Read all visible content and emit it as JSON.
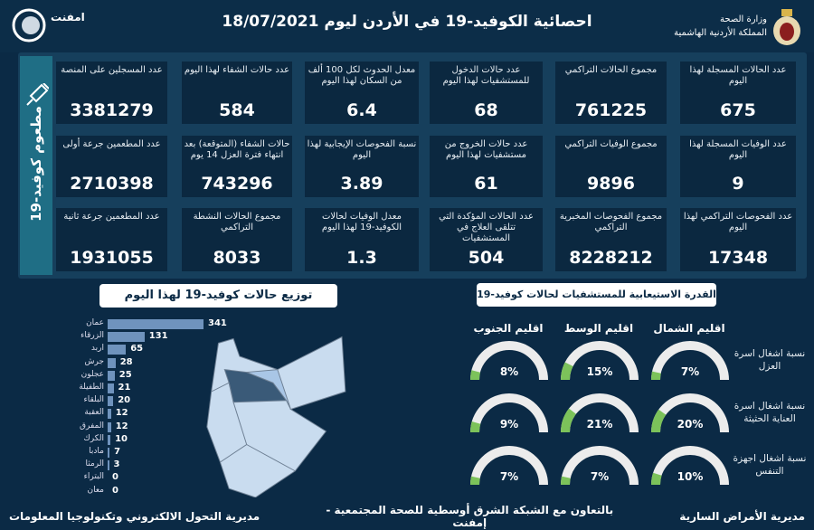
{
  "header": {
    "title": "احصائية الكوفيد-19 في الأردن ليوم 18/07/2021",
    "ministry": "وزارة الصحة",
    "kingdom": "المملكة الأردنية الهاشمية",
    "partner_logo": "امفنت"
  },
  "vaccine_label": "مطعوم كوفيد-19",
  "cards": [
    [
      {
        "label": "عدد المسجلين على المنصة",
        "value": "3381279"
      },
      {
        "label": "عدد حالات الشفاء لهذا اليوم",
        "value": "584"
      },
      {
        "label": "معدل الحدوث لكل 100 ألف من السكان لهذا اليوم",
        "value": "6.4"
      },
      {
        "label": "عدد حالات الدخول للمستشفيات لهذا اليوم",
        "value": "68"
      },
      {
        "label": "مجموع الحالات التراكمي",
        "value": "761225"
      },
      {
        "label": "عدد الحالات المسجلة لهذا اليوم",
        "value": "675"
      }
    ],
    [
      {
        "label": "عدد المطعمين جرعة أولى",
        "value": "2710398"
      },
      {
        "label": "حالات الشفاء (المتوقعة) بعد انتهاء فترة العزل 14 يوم",
        "value": "743296"
      },
      {
        "label": "نسبة الفحوصات الإيجابية لهذا اليوم",
        "value": "3.89"
      },
      {
        "label": "عدد حالات الخروج من مستشفيات لهذا اليوم",
        "value": "61"
      },
      {
        "label": "مجموع الوفيات التراكمي",
        "value": "9896"
      },
      {
        "label": "عدد الوفيات المسجلة لهذا اليوم",
        "value": "9"
      }
    ],
    [
      {
        "label": "عدد المطعمين جرعة ثانية",
        "value": "1931055"
      },
      {
        "label": "مجموع الحالات النشطة التراكمي",
        "value": "8033"
      },
      {
        "label": "معدل الوفيات لحالات الكوفيد-19 لهذا اليوم",
        "value": "1.3"
      },
      {
        "label": "عدد الحالات المؤكدة التي تتلقى العلاج في المستشفيات",
        "value": "504"
      },
      {
        "label": "مجموع الفحوصات المخبرية التراكمي",
        "value": "8228212"
      },
      {
        "label": "عدد الفحوصات التراكمي لهذا اليوم",
        "value": "17348"
      }
    ]
  ],
  "distribution": {
    "title": "توزيع حالات كوفيد-19 لهذا اليوم",
    "bar_color": "#6f93bd",
    "items": [
      {
        "name": "عمان",
        "value": 341
      },
      {
        "name": "الزرقاء",
        "value": 131
      },
      {
        "name": "اربد",
        "value": 65
      },
      {
        "name": "جرش",
        "value": 28
      },
      {
        "name": "عجلون",
        "value": 25
      },
      {
        "name": "الطفيلة",
        "value": 21
      },
      {
        "name": "البلقاء",
        "value": 20
      },
      {
        "name": "العقبة",
        "value": 12
      },
      {
        "name": "المفرق",
        "value": 12
      },
      {
        "name": "الكرك",
        "value": 10
      },
      {
        "name": "مادبا",
        "value": 7
      },
      {
        "name": "الرمثا",
        "value": 3
      },
      {
        "name": "البتراء",
        "value": 0
      },
      {
        "name": "معان",
        "value": 0
      }
    ]
  },
  "capacity": {
    "title": "القدرة الاستيعابية للمستشفيات لحالات كوفيد-19",
    "fill_color": "#7cc25a",
    "track_color": "#ececec",
    "regions": [
      "اقليم الجنوب",
      "اقليم الوسط",
      "اقليم الشمال"
    ],
    "rows": [
      {
        "label": "نسبة اشغال اسرة العزل",
        "values": [
          8,
          15,
          7
        ]
      },
      {
        "label": "نسبة اشغال اسرة العناية الحثيثة",
        "values": [
          9,
          21,
          20
        ]
      },
      {
        "label": "نسبة اشغال اجهزة التنفس",
        "values": [
          7,
          7,
          10
        ]
      }
    ]
  },
  "footer": {
    "right": "مديرية الأمراض السارية",
    "center": "بالتعاون مع الشبكة الشرق أوسطية للصحة المجتمعية - إمفنت",
    "left": "مديرية التحول الالكتروني وتكنولوجيا المعلومات"
  }
}
